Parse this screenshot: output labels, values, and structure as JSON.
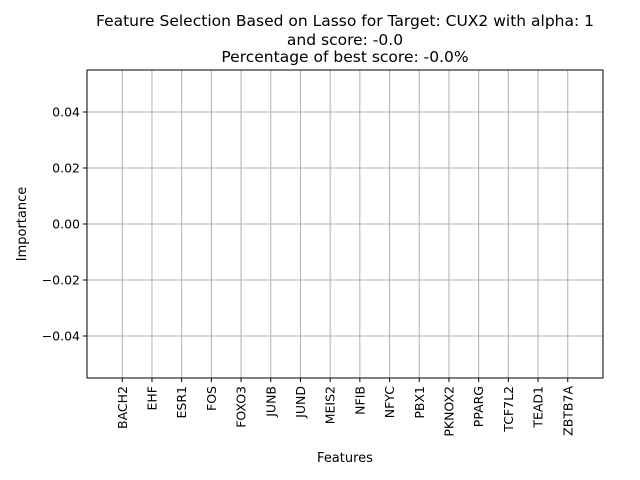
{
  "chart_data": {
    "type": "bar",
    "title": [
      "Feature Selection Based on Lasso for Target: CUX2 with alpha: 1",
      "and score: -0.0",
      "Percentage of best score: -0.0%"
    ],
    "xlabel": "Features",
    "ylabel": "Importance",
    "categories": [
      "BACH2",
      "EHF",
      "ESR1",
      "FOS",
      "FOXO3",
      "JUNB",
      "JUND",
      "MEIS2",
      "NFIB",
      "NFYC",
      "PBX1",
      "PKNOX2",
      "PPARG",
      "TCF7L2",
      "TEAD1",
      "ZBTB7A"
    ],
    "values": [
      0,
      0,
      0,
      0,
      0,
      0,
      0,
      0,
      0,
      0,
      0,
      0,
      0,
      0,
      0,
      0
    ],
    "ylim": [
      -0.055,
      0.055
    ],
    "yticks": [
      -0.04,
      -0.02,
      0.0,
      0.02,
      0.04
    ],
    "ytick_labels": [
      "−0.04",
      "−0.02",
      "0.00",
      "0.02",
      "0.04"
    ],
    "grid": true,
    "colors": {
      "bar": "#1f77b4",
      "grid": "#b0b0b0",
      "axis": "#000000"
    }
  }
}
